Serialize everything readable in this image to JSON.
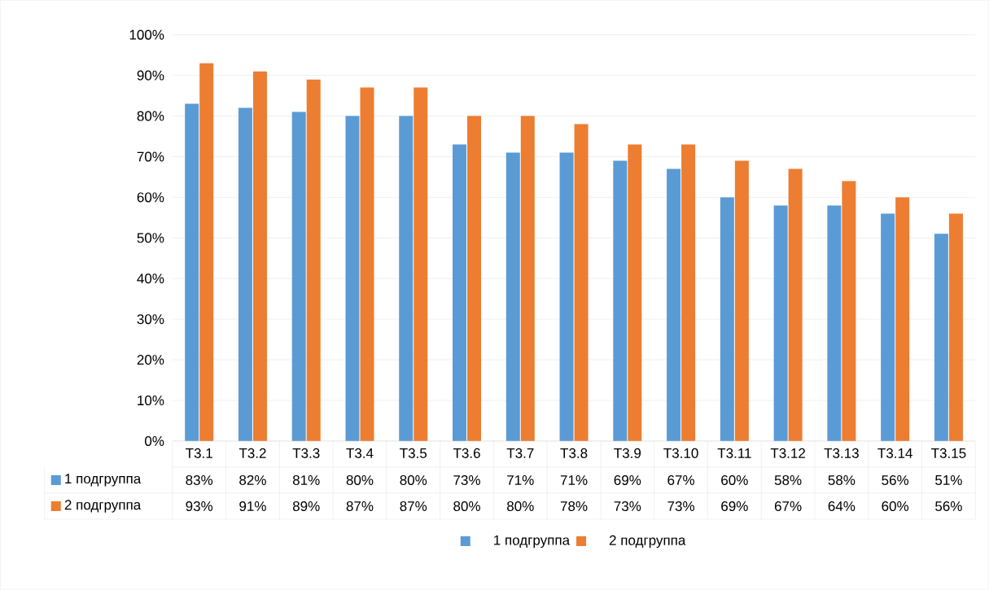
{
  "chart_data": {
    "type": "bar",
    "categories": [
      "T3.1",
      "T3.2",
      "T3.3",
      "T3.4",
      "T3.5",
      "T3.6",
      "T3.7",
      "T3.8",
      "T3.9",
      "T3.10",
      "T3.11",
      "T3.12",
      "T3.13",
      "T3.14",
      "T3.15"
    ],
    "series": [
      {
        "name": "1 подгруппа",
        "color": "#5b9bd5",
        "values": [
          83,
          82,
          81,
          80,
          80,
          73,
          71,
          71,
          69,
          67,
          60,
          58,
          58,
          56,
          51
        ],
        "value_labels": [
          "83%",
          "82%",
          "81%",
          "80%",
          "80%",
          "73%",
          "71%",
          "71%",
          "69%",
          "67%",
          "60%",
          "58%",
          "58%",
          "56%",
          "51%"
        ]
      },
      {
        "name": "2 подгруппа",
        "color": "#ed7d31",
        "values": [
          93,
          91,
          89,
          87,
          87,
          80,
          80,
          78,
          73,
          73,
          69,
          67,
          64,
          60,
          56
        ],
        "value_labels": [
          "93%",
          "91%",
          "89%",
          "87%",
          "87%",
          "80%",
          "80%",
          "78%",
          "73%",
          "73%",
          "69%",
          "67%",
          "64%",
          "60%",
          "56%"
        ]
      }
    ],
    "ylim": [
      0,
      100
    ],
    "yticks": [
      {
        "value": 0,
        "label": "0%"
      },
      {
        "value": 10,
        "label": "10%"
      },
      {
        "value": 20,
        "label": "20%"
      },
      {
        "value": 30,
        "label": "30%"
      },
      {
        "value": 40,
        "label": "40%"
      },
      {
        "value": 50,
        "label": "50%"
      },
      {
        "value": 60,
        "label": "60%"
      },
      {
        "value": 70,
        "label": "70%"
      },
      {
        "value": 80,
        "label": "80%"
      },
      {
        "value": 90,
        "label": "90%"
      },
      {
        "value": 100,
        "label": "100%"
      }
    ],
    "grid": "y",
    "legend": "bottom"
  }
}
